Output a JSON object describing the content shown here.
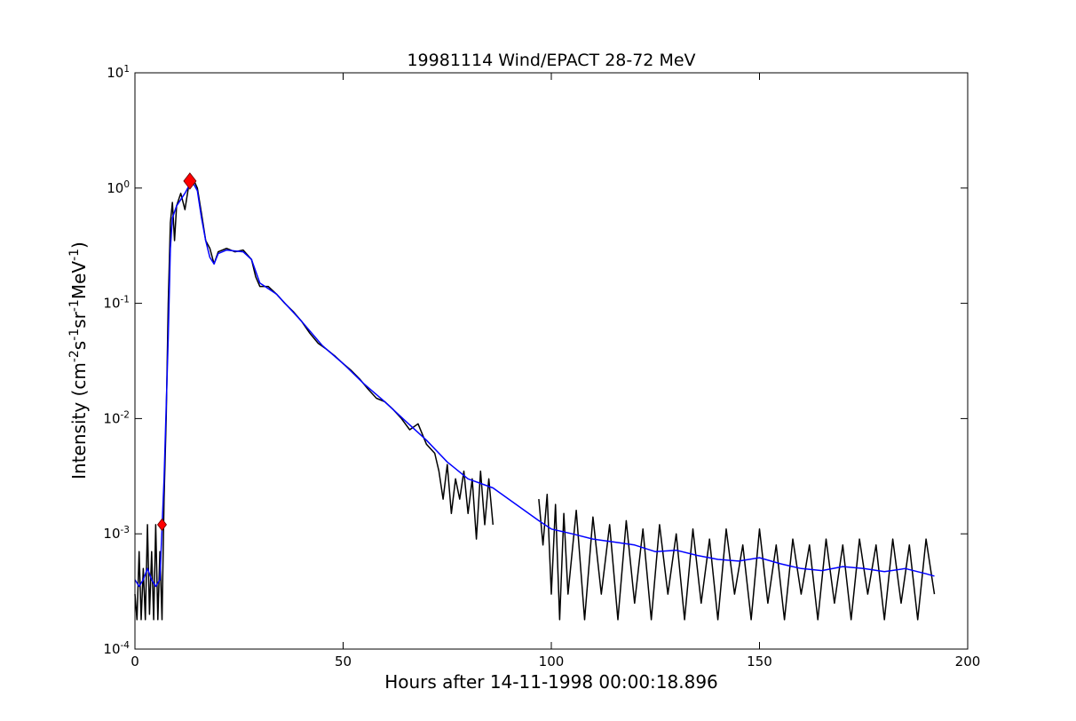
{
  "chart_data": {
    "type": "line",
    "title": "19981114 Wind/EPACT 28-72 MeV",
    "x_label": "Hours after 14-11-1998 00:00:18.896",
    "y_label": "Intensity (cm^{-2}s^{-1}sr^{-1}MeV^{-1})",
    "log_y": true,
    "grid": false,
    "xlim": [
      0,
      200
    ],
    "xticks": [
      0,
      50,
      100,
      150,
      200
    ],
    "ylim": [
      0.0001,
      10
    ],
    "yticks": [
      {
        "value": 0.0001,
        "label": "10^{-4}"
      },
      {
        "value": 0.001,
        "label": "10^{-3}"
      },
      {
        "value": 0.01,
        "label": "10^{-2}"
      },
      {
        "value": 0.1,
        "label": "10^{-1}"
      },
      {
        "value": 1,
        "label": "10^{0}"
      },
      {
        "value": 10,
        "label": "10^{1}"
      }
    ],
    "series": [
      {
        "color": "#000000",
        "style": "line",
        "x": [
          0,
          0.5,
          1,
          1.5,
          2,
          2.5,
          3,
          3.5,
          4,
          4.5,
          5,
          5.5,
          6,
          6.5,
          7,
          7.5,
          8,
          8.5,
          9,
          9.5,
          10,
          11,
          12,
          13,
          14,
          15,
          16,
          17,
          18,
          19,
          20,
          22,
          24,
          26,
          28,
          29,
          30,
          32,
          34,
          36,
          38,
          40,
          42,
          44,
          46,
          48,
          50,
          52,
          54,
          56,
          58,
          60,
          62,
          64,
          66,
          68,
          70,
          72,
          73,
          74,
          75,
          76,
          77,
          78,
          79,
          80,
          81,
          82,
          83,
          84,
          85,
          86,
          91,
          97,
          98,
          99,
          100,
          101,
          102,
          103,
          104,
          106,
          108,
          110,
          112,
          114,
          116,
          118,
          120,
          122,
          124,
          126,
          128,
          130,
          132,
          134,
          136,
          138,
          140,
          142,
          144,
          146,
          148,
          150,
          152,
          154,
          156,
          158,
          160,
          162,
          164,
          166,
          168,
          170,
          172,
          174,
          176,
          178,
          180,
          182,
          184,
          186,
          188,
          190,
          192
        ],
        "values": [
          0.0003,
          0.00018,
          0.0007,
          0.00018,
          0.0005,
          0.00018,
          0.0012,
          0.0002,
          0.0007,
          0.00018,
          0.0012,
          0.00018,
          0.0007,
          0.00018,
          0.002,
          0.01,
          0.1,
          0.5,
          0.75,
          0.35,
          0.7,
          0.9,
          0.65,
          1.1,
          1.2,
          1.0,
          0.6,
          0.35,
          0.3,
          0.22,
          0.28,
          0.3,
          0.28,
          0.29,
          0.24,
          0.17,
          0.14,
          0.14,
          0.12,
          0.1,
          0.085,
          0.07,
          0.055,
          0.045,
          0.04,
          0.035,
          0.03,
          0.026,
          0.022,
          0.018,
          0.015,
          0.014,
          0.012,
          0.01,
          0.008,
          0.009,
          0.006,
          0.005,
          0.0035,
          0.002,
          0.004,
          0.0015,
          0.003,
          0.002,
          0.0035,
          0.0015,
          0.003,
          0.0009,
          0.0035,
          0.0012,
          0.003,
          0.0012,
          null,
          0.002,
          0.0008,
          0.0022,
          0.0003,
          0.0018,
          0.00018,
          0.0015,
          0.0003,
          0.0016,
          0.00018,
          0.0014,
          0.0003,
          0.0012,
          0.00018,
          0.0013,
          0.00025,
          0.0011,
          0.00018,
          0.0012,
          0.0003,
          0.001,
          0.00018,
          0.0011,
          0.00025,
          0.0009,
          0.00018,
          0.0011,
          0.0003,
          0.0008,
          0.00018,
          0.0011,
          0.00025,
          0.0008,
          0.00018,
          0.0009,
          0.0003,
          0.0008,
          0.00018,
          0.0009,
          0.00025,
          0.0008,
          0.00018,
          0.0009,
          0.0003,
          0.0008,
          0.00018,
          0.0009,
          0.00025,
          0.0008,
          0.00018,
          0.0009,
          0.0003
        ]
      },
      {
        "color": "#0000ff",
        "style": "line",
        "x": [
          0,
          1,
          2,
          3,
          4,
          5,
          6,
          7,
          8,
          8.5,
          9,
          10,
          12,
          13,
          14,
          15,
          16,
          17,
          18,
          19,
          20,
          22,
          26,
          28,
          30,
          34,
          40,
          45,
          50,
          55,
          60,
          65,
          70,
          75,
          80,
          86,
          97,
          100,
          105,
          110,
          115,
          120,
          125,
          130,
          135,
          140,
          145,
          150,
          155,
          160,
          165,
          170,
          175,
          180,
          185,
          190,
          192
        ],
        "values": [
          0.0004,
          0.00035,
          0.0004,
          0.0005,
          0.0004,
          0.00035,
          0.0004,
          0.003,
          0.05,
          0.3,
          0.55,
          0.7,
          0.9,
          1.05,
          1.1,
          0.95,
          0.55,
          0.35,
          0.25,
          0.22,
          0.27,
          0.29,
          0.28,
          0.24,
          0.15,
          0.12,
          0.07,
          0.043,
          0.03,
          0.02,
          0.014,
          0.0095,
          0.0065,
          0.0042,
          0.003,
          0.0025,
          0.0013,
          0.0011,
          0.001,
          0.0009,
          0.00085,
          0.0008,
          0.0007,
          0.00072,
          0.00065,
          0.0006,
          0.00058,
          0.00062,
          0.00055,
          0.0005,
          0.00048,
          0.00052,
          0.0005,
          0.00047,
          0.0005,
          0.00045,
          0.00043
        ]
      },
      {
        "color": "#ff0000",
        "style": "marker",
        "x": [
          6.5,
          13.2
        ],
        "values": [
          0.0012,
          1.15
        ]
      }
    ]
  }
}
